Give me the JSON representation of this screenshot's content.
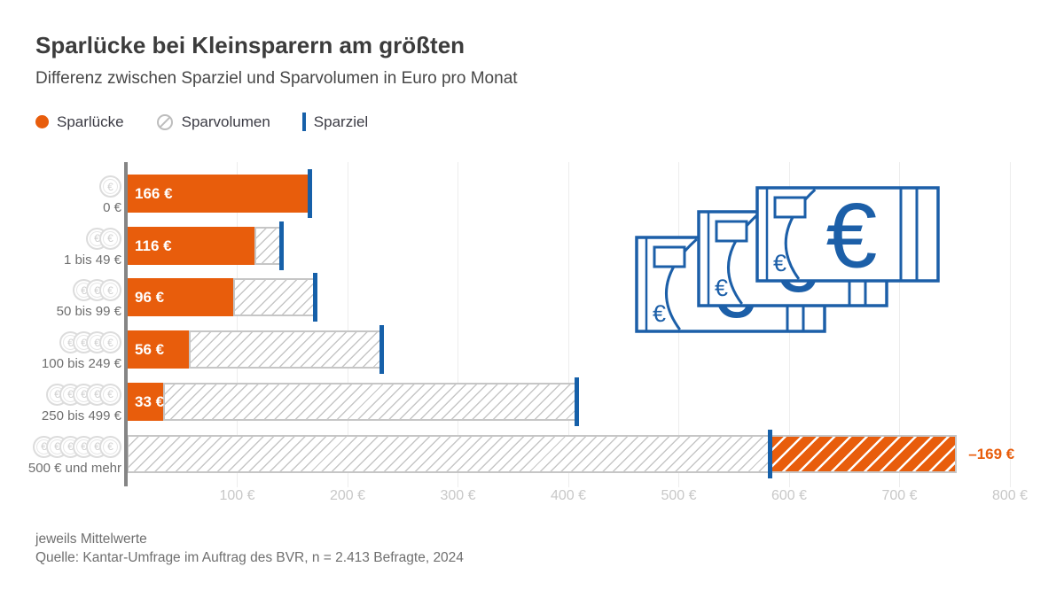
{
  "header": {
    "title": "Sparlücke bei Kleinsparern am größten",
    "subtitle": "Differenz zwischen Sparziel und Sparvolumen in Euro pro Monat"
  },
  "legend": {
    "items": [
      {
        "label": "Sparlücke",
        "swatch": "orange-dot"
      },
      {
        "label": "Sparvolumen",
        "swatch": "hatched-circle"
      },
      {
        "label": "Sparziel",
        "swatch": "blue-line"
      }
    ]
  },
  "colors": {
    "orange": "#E85D0C",
    "blue": "#1660A9",
    "illustration_blue": "#1C5FA8",
    "axis_gray": "#858585",
    "grid_gray": "#ededed",
    "hatch_gray": "#c6c6c6",
    "label_gray": "#6f6f6f",
    "tick_gray": "#c8c8c8",
    "title_gray": "#3c3c3c"
  },
  "chart_data": {
    "type": "bar",
    "orientation": "horizontal-stacked",
    "title": "Sparlücke bei Kleinsparern am größten",
    "subtitle": "Differenz zwischen Sparziel und Sparvolumen in Euro pro Monat",
    "unit": "Euro pro Monat",
    "categories": [
      "0 €",
      "1 bis 49 €",
      "50 bis 99 €",
      "100 bis 249 €",
      "250 bis 499 €",
      "500 € und mehr"
    ],
    "coin_counts": [
      1,
      2,
      3,
      4,
      5,
      6
    ],
    "series": [
      {
        "name": "Sparlücke",
        "values": [
          166,
          116,
          96,
          56,
          33,
          -169
        ],
        "labels": [
          "166 €",
          "116 €",
          "96 €",
          "56 €",
          "33 €",
          "–169 €"
        ]
      },
      {
        "name": "Sparvolumen",
        "values_estimated_from_chart": [
          0,
          24,
          75,
          175,
          375,
          752
        ]
      },
      {
        "name": "Sparziel",
        "values_estimated_from_chart": [
          166,
          140,
          171,
          231,
          408,
          583
        ]
      }
    ],
    "x_axis": {
      "min": 0,
      "max": 800,
      "tick_step": 100,
      "tick_labels": [
        "100 €",
        "200 €",
        "300 €",
        "400 €",
        "500 €",
        "600 €",
        "700 €",
        "800 €"
      ]
    },
    "grid": true,
    "legend_position": "top-left"
  },
  "footer": {
    "note": "jeweils Mittelwerte",
    "source": "Quelle: Kantar-Umfrage im Auftrag des BVR, n = 2.413 Befragte, 2024"
  }
}
